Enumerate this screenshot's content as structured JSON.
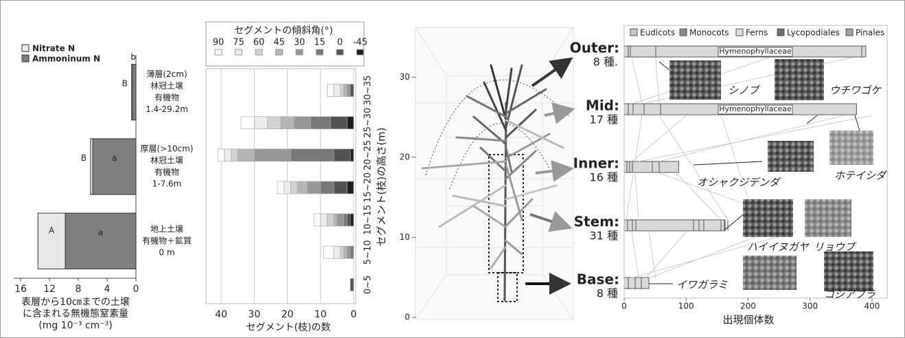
{
  "chart_data": [
    {
      "type": "stacked-barh",
      "categories": [
        [
          "薄層(2cm)",
          "林冠土壌",
          "有機物",
          "1.4-29.2m"
        ],
        [
          "厚層(>10cm)",
          "林冠土壌",
          "有機物",
          "1-7.6m"
        ],
        [
          "地上土壌",
          "有機物＋鉱質",
          "0 m"
        ]
      ],
      "series": [
        {
          "name": "Ammoninum N",
          "color": "#7f7f7f",
          "values": [
            0.5,
            6.0,
            9.8
          ],
          "letters": [
            "b",
            "a",
            "a"
          ]
        },
        {
          "name": "Nitrate N",
          "color": "#e8e8e8",
          "values": [
            0.1,
            0.3,
            3.8
          ],
          "letters": [
            "B",
            "B",
            "A"
          ]
        }
      ],
      "xlim": [
        16,
        0
      ],
      "xticks": [
        16,
        12,
        8,
        4,
        0
      ],
      "xlabel": [
        "表層から10㎝までの土壌",
        "に含まれる無機態窒素量",
        "(mg 10⁻³ cm⁻³)"
      ]
    },
    {
      "type": "stacked-barh",
      "legend_title": "セグメントの傾斜角(°)",
      "categories": [
        "0~5",
        "5~10",
        "10~15",
        "15~20",
        "20~25",
        "25~30",
        "30~35"
      ],
      "series": [
        {
          "name": "90",
          "color": "#ffffff",
          "values": [
            0,
            3,
            2,
            2,
            2,
            4,
            2
          ]
        },
        {
          "name": "75",
          "color": "#ececec",
          "values": [
            0,
            2,
            2,
            2,
            2,
            4,
            2
          ]
        },
        {
          "name": "60",
          "color": "#d2d2d2",
          "values": [
            0,
            1,
            2,
            2,
            2,
            4,
            1
          ]
        },
        {
          "name": "45",
          "color": "#b5b5b5",
          "values": [
            0,
            1,
            1,
            3,
            5,
            4,
            1
          ]
        },
        {
          "name": "30",
          "color": "#979797",
          "values": [
            0,
            1,
            2,
            4,
            11,
            5,
            1
          ]
        },
        {
          "name": "15",
          "color": "#787878",
          "values": [
            0,
            1,
            1,
            4,
            13,
            6,
            0
          ]
        },
        {
          "name": "0",
          "color": "#525252",
          "values": [
            1,
            0,
            1,
            4,
            5,
            5,
            1
          ]
        },
        {
          "name": "-45",
          "color": "#1e1e1e",
          "values": [
            0,
            0,
            1,
            2,
            1,
            2,
            0
          ]
        }
      ],
      "xlim": [
        45,
        0
      ],
      "xticks": [
        40,
        30,
        20,
        10,
        0
      ],
      "grid": true,
      "xlabel": "セグメント(枝)の数",
      "ylabel": "セグメント(枝)の高さ(m)"
    },
    {
      "type": "3d-tree",
      "ylim": [
        0,
        35
      ],
      "yticks": [
        0,
        10,
        20,
        30
      ]
    },
    {
      "type": "barh",
      "categories": [
        "Outer:",
        "Mid:",
        "Inner:",
        "Stem:",
        "Base:"
      ],
      "species_counts": [
        "8 種.",
        "17 種",
        "16 種",
        "31 種",
        "8 種"
      ],
      "values": [
        390,
        375,
        88,
        163,
        40
      ],
      "color": "#d9d9d9",
      "legend": [
        {
          "name": "Eudicots",
          "color": "#c4c4c4"
        },
        {
          "name": "Monocots",
          "color": "#8a8a8a"
        },
        {
          "name": "Ferns",
          "color": "#dcdcdc"
        },
        {
          "name": "Lycopodiales",
          "color": "#6e6e6e"
        },
        {
          "name": "Pinales",
          "color": "#a2a2a2"
        }
      ],
      "annotations": [
        "Hymenophyllaceae",
        "Hymenophyllaceae"
      ],
      "photo_captions": [
        "シノブ",
        "ウチワゴケ",
        "オシャクジデンダ",
        "ホテイシダ",
        "ハイイヌガヤ",
        "リョウブ",
        "イワガラミ",
        "コシアブラ"
      ],
      "xlim": [
        0,
        420
      ],
      "xticks": [
        0,
        100,
        200,
        300,
        400
      ],
      "xlabel": "出現個体数"
    }
  ]
}
